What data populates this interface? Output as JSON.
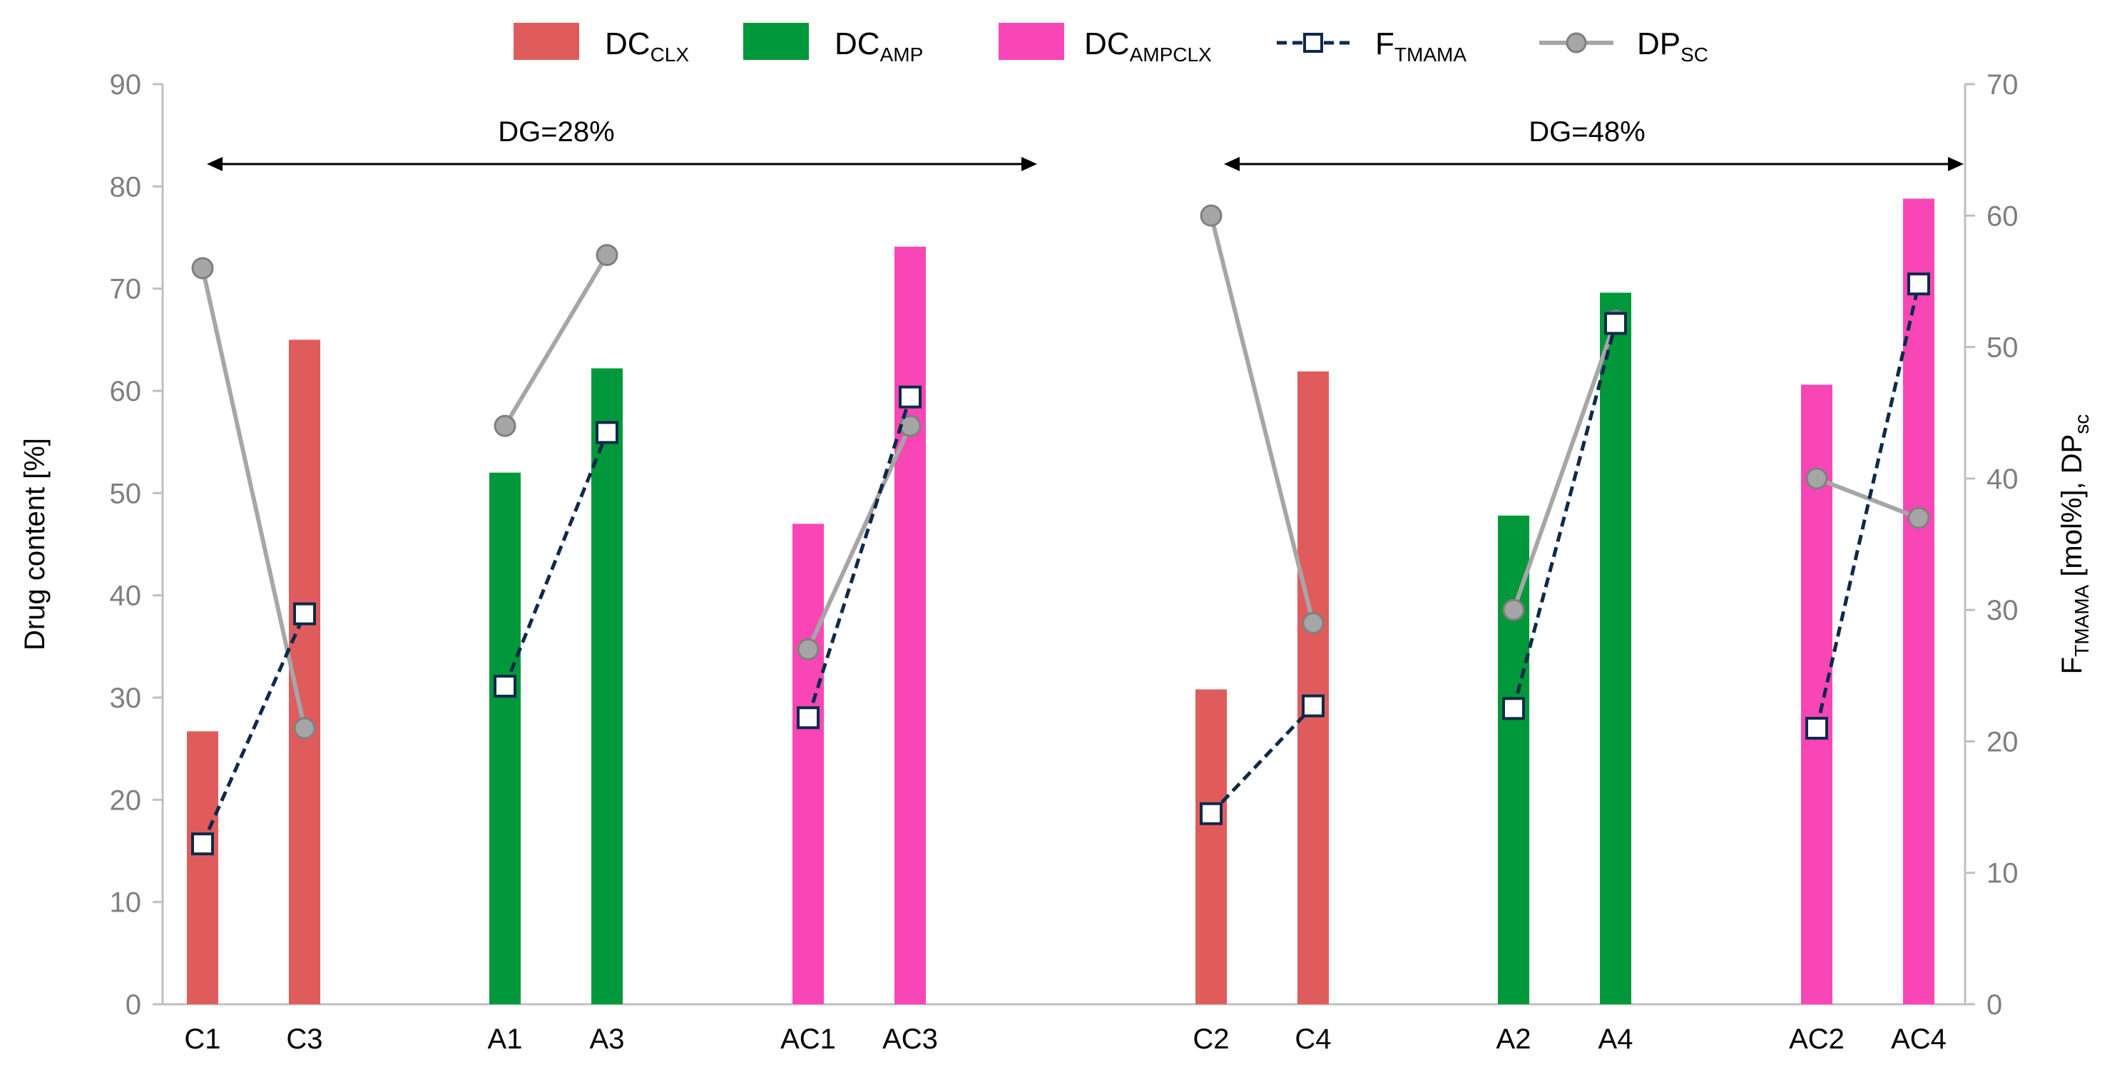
{
  "chart_data": {
    "type": "bar",
    "categories": [
      "C1",
      "C3",
      "A1",
      "A3",
      "AC1",
      "AC3",
      "C2",
      "C4",
      "A2",
      "A4",
      "AC2",
      "AC4"
    ],
    "groups": [
      {
        "label": "DG=28%",
        "categories": [
          "C1",
          "C3",
          "A1",
          "A3",
          "AC1",
          "AC3"
        ]
      },
      {
        "label": "DG=48%",
        "categories": [
          "C2",
          "C4",
          "A2",
          "A4",
          "AC2",
          "AC4"
        ]
      }
    ],
    "bar_series": [
      {
        "name": "DC",
        "sub": "CLX",
        "color": "#e05c5c",
        "values": [
          26.7,
          65.0,
          null,
          null,
          null,
          null,
          30.8,
          61.9,
          null,
          null,
          null,
          null
        ]
      },
      {
        "name": "DC",
        "sub": "AMP",
        "color": "#00983a",
        "values": [
          null,
          null,
          52.0,
          62.2,
          null,
          null,
          null,
          null,
          47.8,
          69.6,
          null,
          null
        ]
      },
      {
        "name": "DC",
        "sub": "AMPCLX",
        "color": "#f946b6",
        "values": [
          null,
          null,
          null,
          null,
          47.0,
          74.1,
          null,
          null,
          null,
          null,
          60.6,
          78.8
        ]
      }
    ],
    "line_series": [
      {
        "name": "F",
        "sub": "TMAMA",
        "color": "#0d2a4a",
        "dashed": true,
        "marker": "square",
        "axis": "right",
        "segments": [
          [
            12.2,
            29.7
          ],
          [
            24.2,
            43.5
          ],
          [
            21.8,
            46.2
          ],
          [
            14.5,
            22.7
          ],
          [
            22.5,
            51.8
          ],
          [
            21.0,
            54.8
          ]
        ]
      },
      {
        "name": "DP",
        "sub": "SC",
        "color": "#a6a6a6",
        "dashed": false,
        "marker": "circle",
        "axis": "right",
        "segments": [
          [
            56,
            21
          ],
          [
            44,
            57
          ],
          [
            27,
            44
          ],
          [
            60,
            29
          ],
          [
            30,
            52
          ],
          [
            40,
            37
          ]
        ]
      }
    ],
    "ylabel": "Drug content [%]",
    "ylim": [
      0,
      90
    ],
    "yticks": [
      "0",
      "10",
      "20",
      "30",
      "40",
      "50",
      "60",
      "70",
      "80",
      "90"
    ],
    "y2label_parts": {
      "pre": "F",
      "sub": "TMAMA",
      "mid": " [mol%], DP",
      "sub2": "sc"
    },
    "y2lim": [
      0,
      70
    ],
    "y2ticks": [
      "0",
      "10",
      "20",
      "30",
      "40",
      "50",
      "60",
      "70"
    ],
    "legend_position": "top",
    "grid": false
  }
}
